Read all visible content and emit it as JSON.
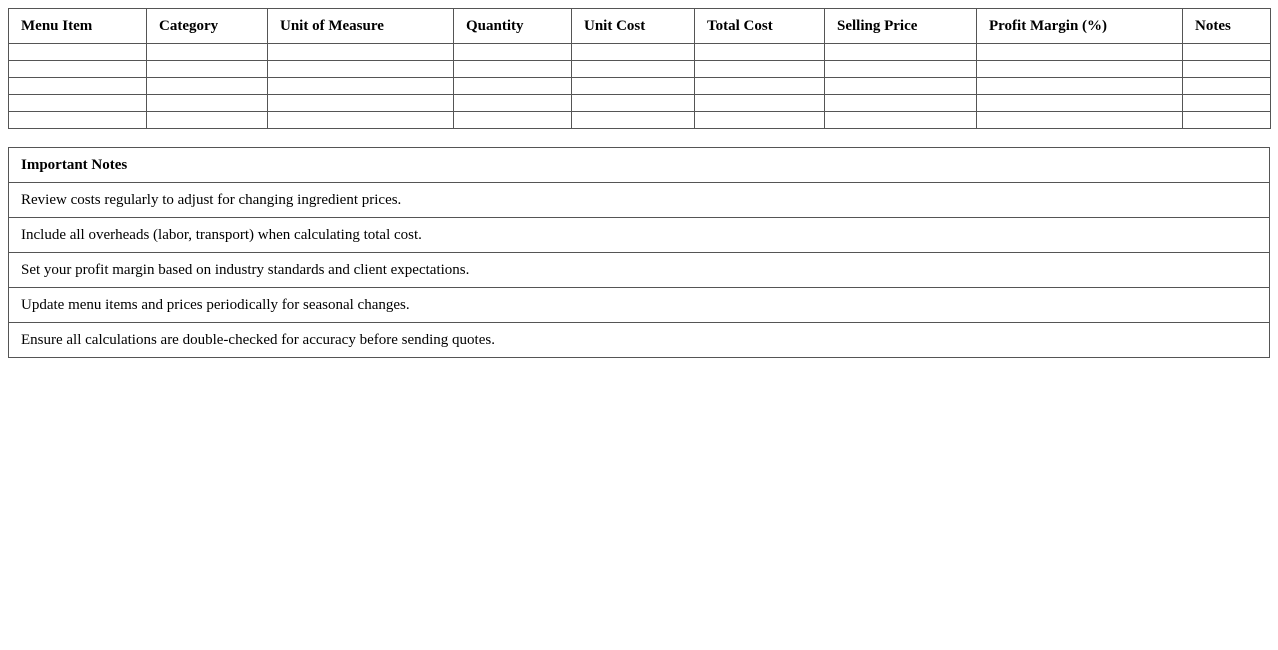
{
  "cost_table": {
    "headers": [
      "Menu Item",
      "Category",
      "Unit of Measure",
      "Quantity",
      "Unit Cost",
      "Total Cost",
      "Selling Price",
      "Profit Margin (%)",
      "Notes"
    ],
    "rows": [
      [
        "",
        "",
        "",
        "",
        "",
        "",
        "",
        "",
        ""
      ],
      [
        "",
        "",
        "",
        "",
        "",
        "",
        "",
        "",
        ""
      ],
      [
        "",
        "",
        "",
        "",
        "",
        "",
        "",
        "",
        ""
      ],
      [
        "",
        "",
        "",
        "",
        "",
        "",
        "",
        "",
        ""
      ],
      [
        "",
        "",
        "",
        "",
        "",
        "",
        "",
        "",
        ""
      ]
    ]
  },
  "notes": {
    "title": "Important Notes",
    "items": [
      "Review costs regularly to adjust for changing ingredient prices.",
      "Include all overheads (labor, transport) when calculating total cost.",
      "Set your profit margin based on industry standards and client expectations.",
      "Update menu items and prices periodically for seasonal changes.",
      "Ensure all calculations are double-checked for accuracy before sending quotes."
    ]
  }
}
